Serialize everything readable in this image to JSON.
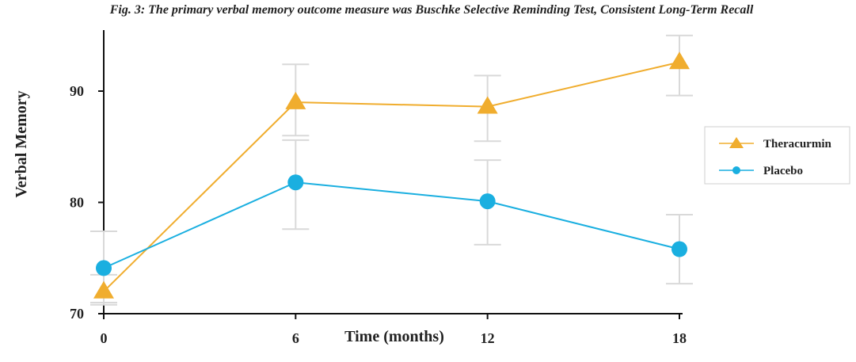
{
  "chart_data": {
    "type": "line",
    "title": "Fig. 3: The primary verbal memory outcome measure was Buschke Selective Reminding Test, Consistent Long-Term Recall",
    "xlabel": "Time (months)",
    "ylabel": "Verbal Memory",
    "x": [
      0,
      6,
      12,
      18
    ],
    "xticks": [
      "0",
      "6",
      "12",
      "18"
    ],
    "yticks": [
      "70",
      "80",
      "90"
    ],
    "xlim": [
      0,
      18
    ],
    "ylim": [
      70,
      95
    ],
    "grid": false,
    "legend_position": "right",
    "series": [
      {
        "name": "Theracurmin",
        "marker": "triangle",
        "color": "#F0AD2E",
        "values": [
          72.0,
          89.0,
          88.6,
          92.6
        ],
        "error_low": [
          71.0,
          86.0,
          85.5,
          89.6
        ],
        "error_high": [
          73.5,
          92.4,
          91.4,
          95.0
        ]
      },
      {
        "name": "Placebo",
        "marker": "circle",
        "color": "#1AAFE0",
        "values": [
          74.1,
          81.8,
          80.1,
          75.8
        ],
        "error_low": [
          70.8,
          77.6,
          76.2,
          72.7
        ],
        "error_high": [
          77.4,
          85.6,
          83.8,
          78.9
        ]
      }
    ]
  }
}
